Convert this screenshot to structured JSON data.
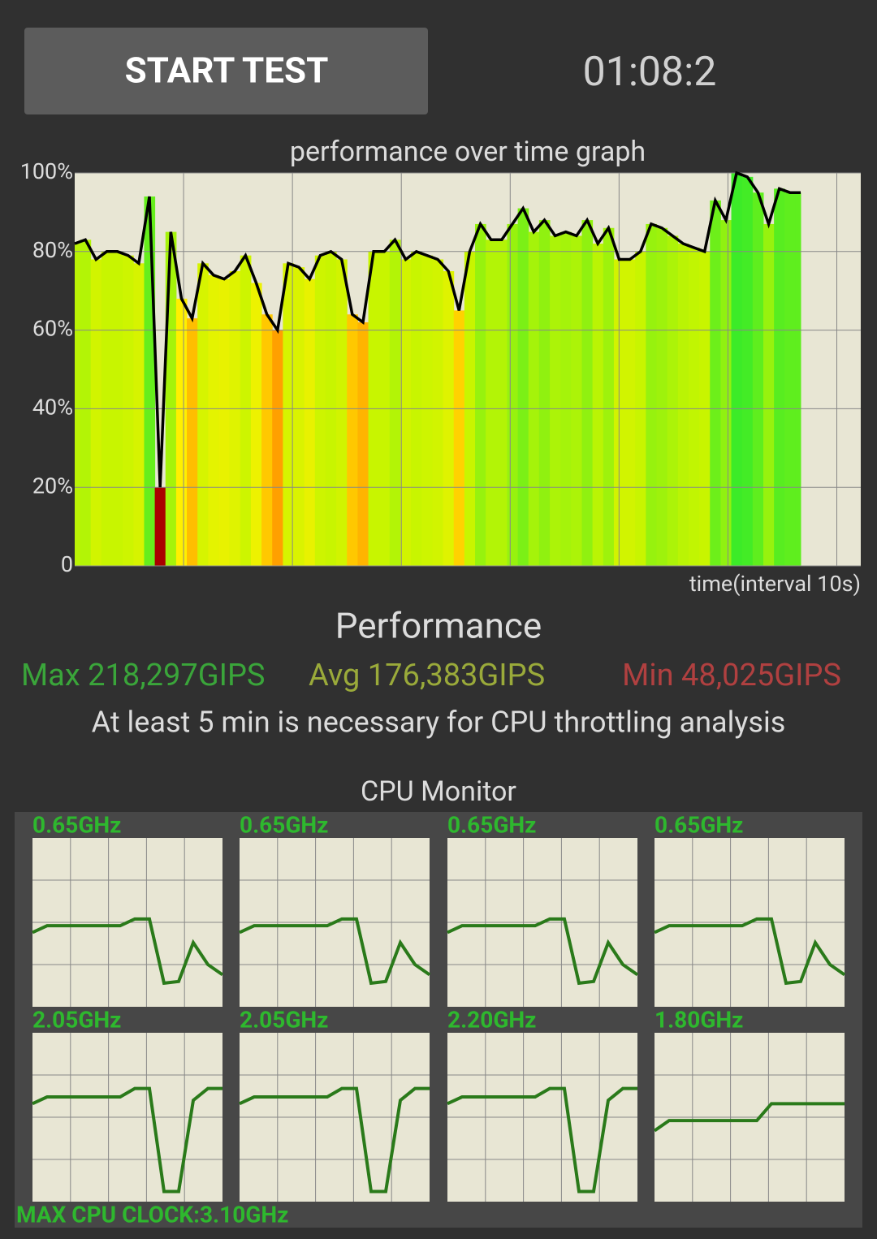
{
  "header": {
    "button": "START TEST",
    "timer": "01:08:2"
  },
  "chart_data": {
    "type": "line",
    "title": "performance over time graph",
    "x_label": "time(interval 10s)",
    "ylim": [
      0,
      100
    ],
    "yticks": [
      0,
      {
        "value": 20,
        "label": "20%"
      },
      {
        "value": 40,
        "label": "40%"
      },
      {
        "value": 60,
        "label": "60%"
      },
      {
        "value": 80,
        "label": "80%"
      },
      {
        "value": 100,
        "label": "100%"
      }
    ],
    "grid": true,
    "values": [
      82,
      83,
      78,
      80,
      80,
      79,
      77,
      94,
      20,
      85,
      68,
      63,
      77,
      74,
      73,
      75,
      79,
      72,
      64,
      60,
      77,
      76,
      73,
      79,
      80,
      78,
      64,
      62,
      80,
      80,
      83,
      78,
      80,
      79,
      78,
      75,
      65,
      80,
      87,
      83,
      83,
      87,
      91,
      85,
      88,
      84,
      85,
      84,
      88,
      82,
      86,
      78,
      78,
      80,
      87,
      86,
      84,
      82,
      81,
      80,
      93,
      88,
      100,
      99,
      95,
      87,
      96,
      95,
      95
    ]
  },
  "performance": {
    "title": "Performance",
    "max": "Max 218,297GIPS",
    "avg": "Avg 176,383GIPS",
    "min": "Min 48,025GIPS",
    "note": "At least 5 min is necessary for CPU throttling analysis"
  },
  "cpu_monitor": {
    "title": "CPU Monitor",
    "footer": "MAX CPU CLOCK:3.10GHz",
    "cores": [
      {
        "label": "0.65GHz",
        "values": [
          44,
          48,
          48,
          48,
          48,
          48,
          48,
          52,
          52,
          14,
          15,
          38,
          25,
          19
        ]
      },
      {
        "label": "0.65GHz",
        "values": [
          44,
          48,
          48,
          48,
          48,
          48,
          48,
          52,
          52,
          14,
          15,
          38,
          25,
          19
        ]
      },
      {
        "label": "0.65GHz",
        "values": [
          44,
          48,
          48,
          48,
          48,
          48,
          48,
          52,
          52,
          14,
          15,
          38,
          25,
          19
        ]
      },
      {
        "label": "0.65GHz",
        "values": [
          44,
          48,
          48,
          48,
          48,
          48,
          48,
          52,
          52,
          14,
          15,
          38,
          25,
          19
        ]
      },
      {
        "label": "2.05GHz",
        "values": [
          58,
          62,
          62,
          62,
          62,
          62,
          62,
          67,
          67,
          6,
          6,
          60,
          67,
          67
        ]
      },
      {
        "label": "2.05GHz",
        "values": [
          58,
          62,
          62,
          62,
          62,
          62,
          62,
          67,
          67,
          6,
          6,
          60,
          67,
          67
        ]
      },
      {
        "label": "2.20GHz",
        "values": [
          58,
          62,
          62,
          62,
          62,
          62,
          62,
          67,
          67,
          6,
          6,
          60,
          67,
          67
        ]
      },
      {
        "label": "1.80GHz",
        "values": [
          42,
          48,
          48,
          48,
          48,
          48,
          48,
          48,
          58,
          58,
          58,
          58,
          58,
          58
        ]
      }
    ]
  }
}
